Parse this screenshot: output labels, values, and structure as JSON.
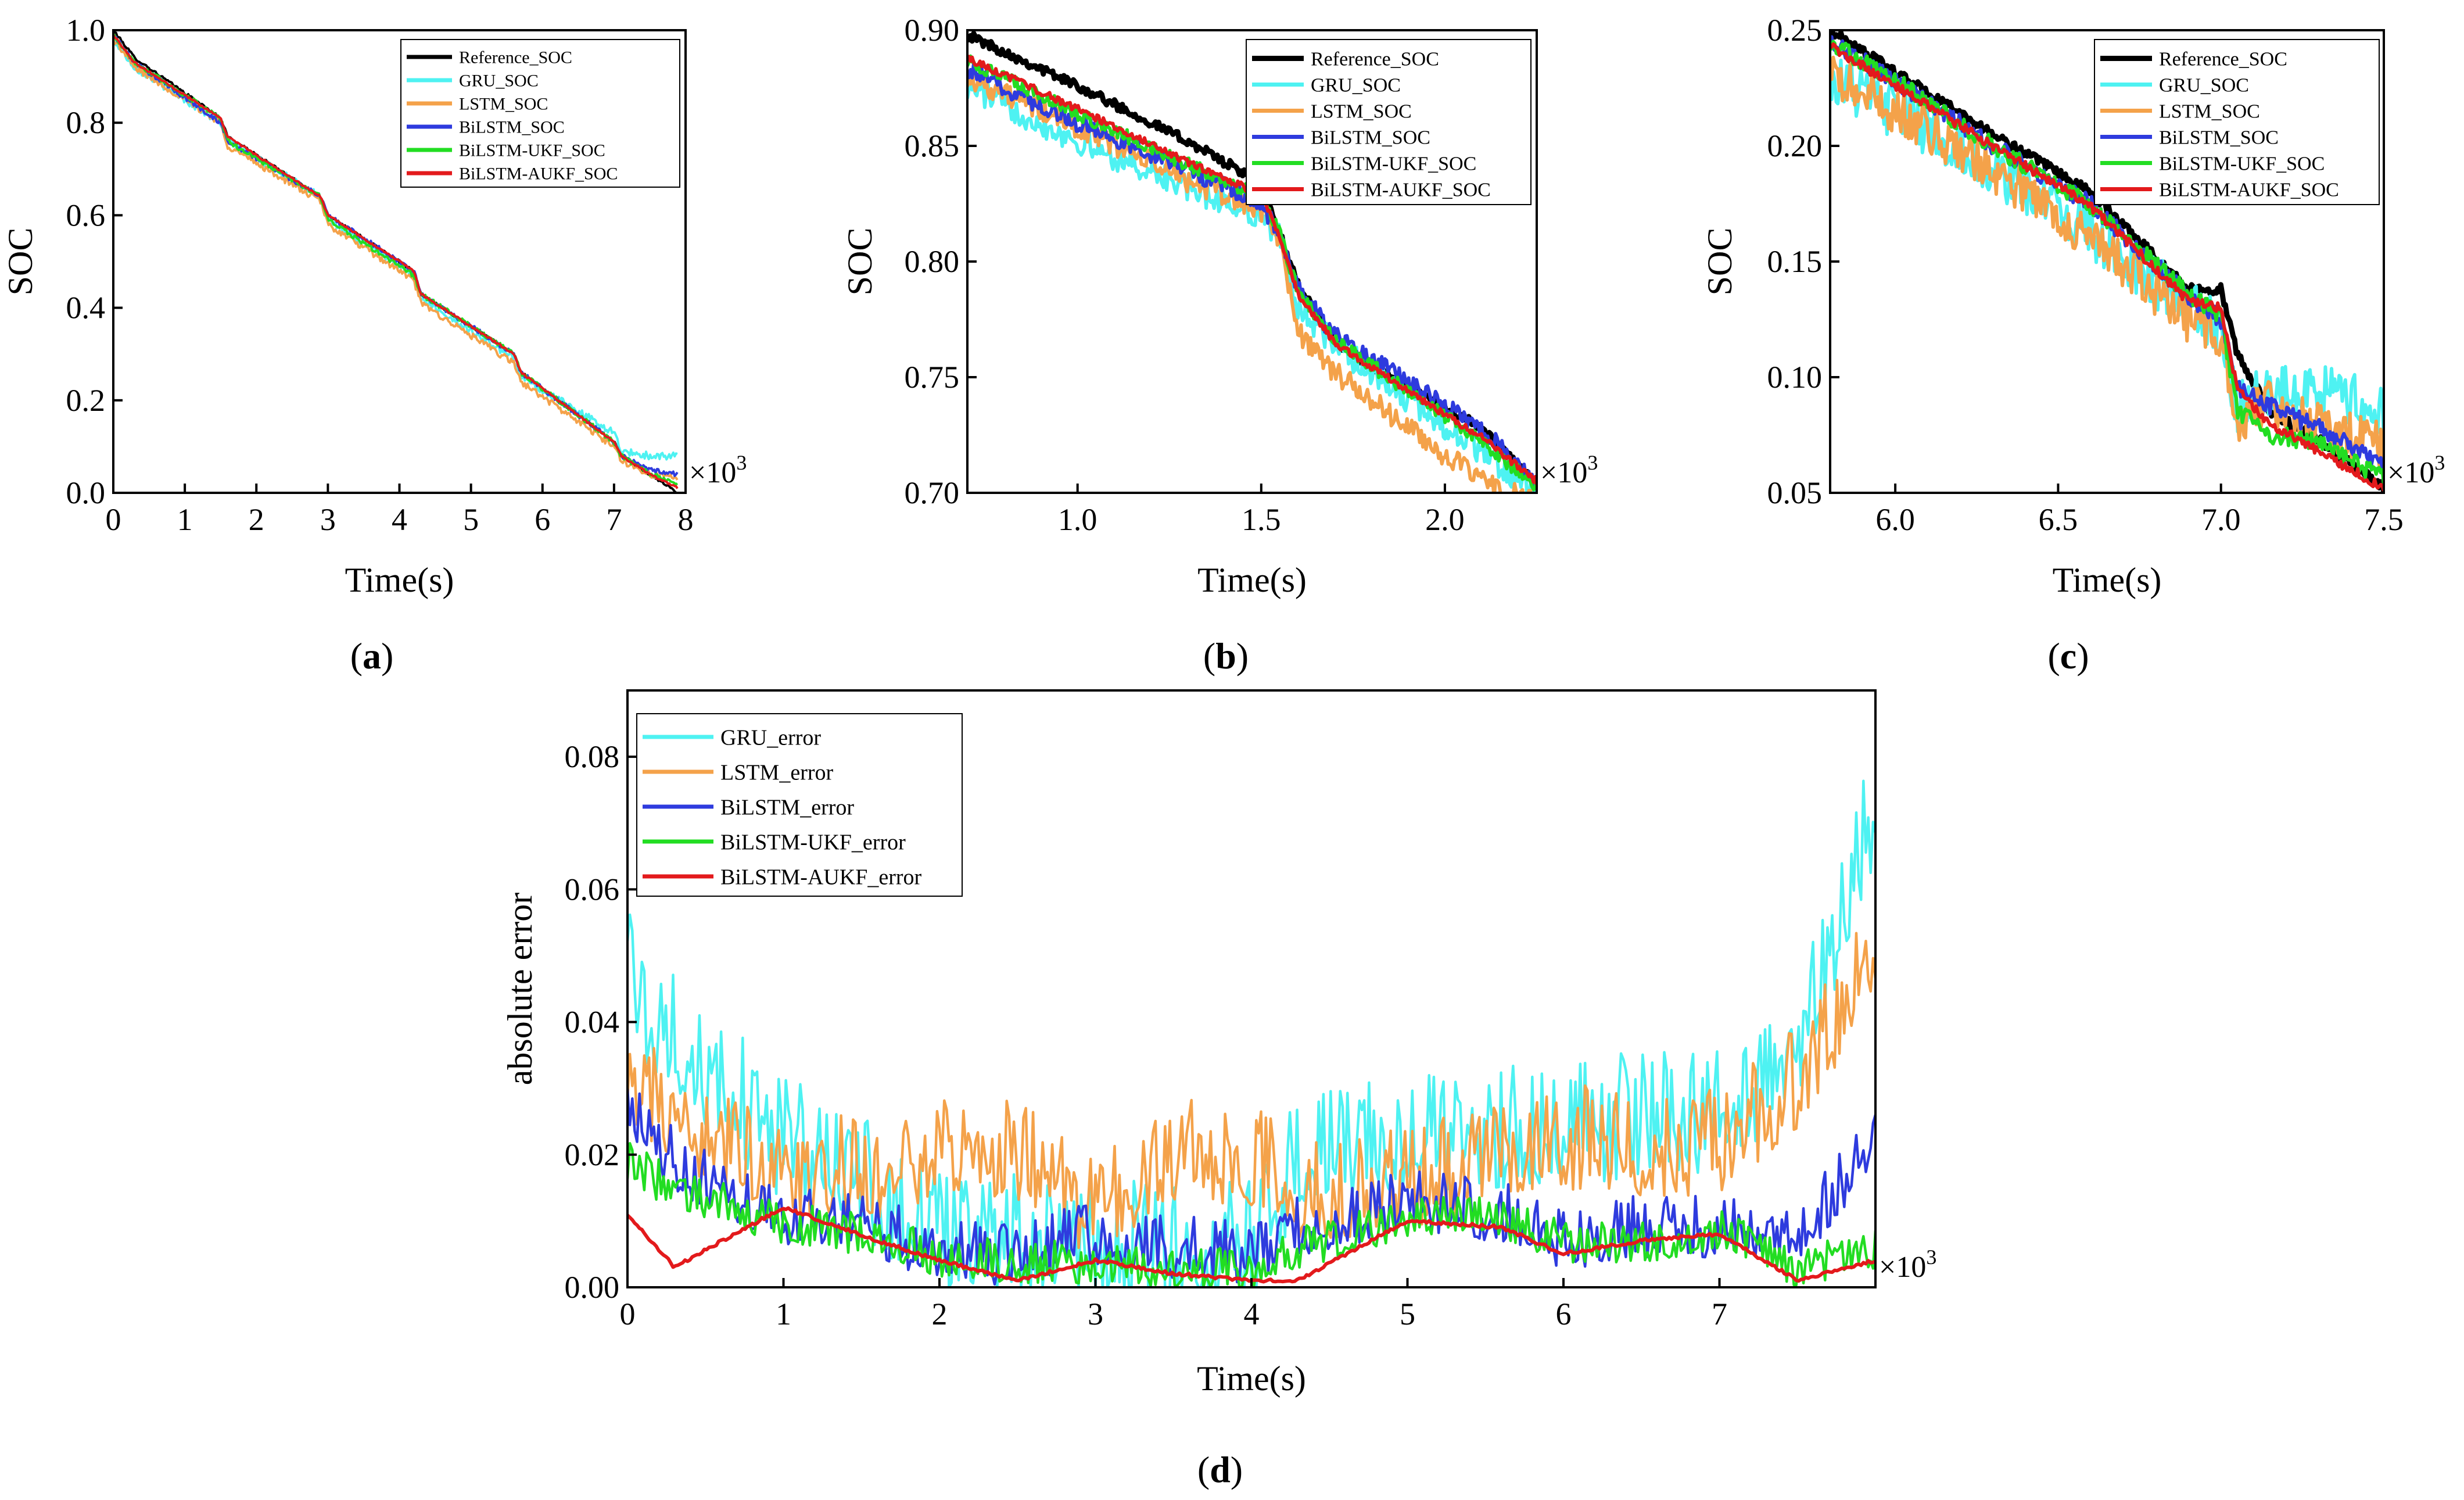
{
  "colors": {
    "reference": "#000000",
    "gru": "#4EF2F2",
    "lstm": "#F4A24A",
    "bilstm": "#2E3BDE",
    "ukf": "#22DD22",
    "aukf": "#E31A1C"
  },
  "panels": [
    {
      "label": "(a)",
      "letter": "a"
    },
    {
      "label": "(b)",
      "letter": "b"
    },
    {
      "label": "(c)",
      "letter": "c"
    },
    {
      "label": "(d)",
      "letter": "d"
    }
  ],
  "chart_data": [
    {
      "id": "a",
      "type": "line",
      "panel_label": "(a)",
      "xlabel": "Time(s)",
      "ylabel": "SOC",
      "x_multiplier": "×10",
      "x_multiplier_exp": "3",
      "xlim": [
        0,
        8
      ],
      "ylim": [
        0,
        1.0
      ],
      "xticks": [
        0,
        1,
        2,
        3,
        4,
        5,
        6,
        7,
        8
      ],
      "xtick_labels": [
        "0",
        "1",
        "2",
        "3",
        "4",
        "5",
        "6",
        "7",
        "8"
      ],
      "yticks": [
        0,
        0.2,
        0.4,
        0.6,
        0.8,
        1.0
      ],
      "ytick_labels": [
        "0.0",
        "0.2",
        "0.4",
        "0.6",
        "0.8",
        "1.0"
      ],
      "legend": "top-right",
      "grid": false,
      "anchors": {
        "x": [
          0,
          0.1,
          0.3,
          1.5,
          1.6,
          2.9,
          3.0,
          4.2,
          4.3,
          5.6,
          5.7,
          7.0,
          7.1,
          7.5,
          7.9
        ],
        "Reference_SOC": [
          1.0,
          0.98,
          0.94,
          0.81,
          0.77,
          0.64,
          0.6,
          0.48,
          0.43,
          0.3,
          0.26,
          0.11,
          0.08,
          0.04,
          0.0
        ],
        "GRU_SOC": [
          0.98,
          0.96,
          0.92,
          0.8,
          0.76,
          0.64,
          0.59,
          0.47,
          0.42,
          0.29,
          0.25,
          0.13,
          0.09,
          0.08,
          0.08
        ],
        "LSTM_SOC": [
          0.98,
          0.96,
          0.92,
          0.8,
          0.75,
          0.63,
          0.58,
          0.46,
          0.41,
          0.28,
          0.24,
          0.1,
          0.07,
          0.04,
          0.03
        ],
        "BiLSTM_SOC": [
          0.99,
          0.97,
          0.93,
          0.8,
          0.76,
          0.64,
          0.6,
          0.48,
          0.43,
          0.3,
          0.26,
          0.11,
          0.08,
          0.05,
          0.04
        ],
        "BiLSTM-UKF_SOC": [
          0.99,
          0.97,
          0.93,
          0.81,
          0.76,
          0.64,
          0.59,
          0.47,
          0.43,
          0.3,
          0.26,
          0.11,
          0.08,
          0.04,
          0.02
        ],
        "BiLSTM-AUKF_SOC": [
          0.99,
          0.97,
          0.93,
          0.81,
          0.77,
          0.64,
          0.6,
          0.48,
          0.43,
          0.3,
          0.26,
          0.11,
          0.08,
          0.04,
          0.01
        ]
      },
      "series": [
        {
          "name": "Reference_SOC",
          "color_key": "reference",
          "noise": 0.003
        },
        {
          "name": "GRU_SOC",
          "color_key": "gru",
          "noise": 0.008
        },
        {
          "name": "LSTM_SOC",
          "color_key": "lstm",
          "noise": 0.007
        },
        {
          "name": "BiLSTM_SOC",
          "color_key": "bilstm",
          "noise": 0.005
        },
        {
          "name": "BiLSTM-UKF_SOC",
          "color_key": "ukf",
          "noise": 0.005
        },
        {
          "name": "BiLSTM-AUKF_SOC",
          "color_key": "aukf",
          "noise": 0.002
        }
      ]
    },
    {
      "id": "b",
      "type": "line",
      "panel_label": "(b)",
      "xlabel": "Time(s)",
      "ylabel": "SOC",
      "x_multiplier": "×10",
      "x_multiplier_exp": "3",
      "xlim": [
        0.7,
        2.25
      ],
      "ylim": [
        0.7,
        0.9
      ],
      "xticks": [
        1.0,
        1.5,
        2.0
      ],
      "xtick_labels": [
        "1.0",
        "1.5",
        "2.0"
      ],
      "yticks": [
        0.7,
        0.75,
        0.8,
        0.85,
        0.9
      ],
      "ytick_labels": [
        "0.70",
        "0.75",
        "0.80",
        "0.85",
        "0.90"
      ],
      "legend": "top-right",
      "grid": false,
      "anchors": {
        "x": [
          0.7,
          1.0,
          1.3,
          1.5,
          1.55,
          1.6,
          1.7,
          1.9,
          2.1,
          2.25
        ],
        "Reference_SOC": [
          0.898,
          0.876,
          0.852,
          0.834,
          0.812,
          0.79,
          0.765,
          0.745,
          0.728,
          0.703
        ],
        "GRU_SOC": [
          0.876,
          0.852,
          0.832,
          0.82,
          0.81,
          0.78,
          0.764,
          0.74,
          0.718,
          0.699
        ],
        "LSTM_SOC": [
          0.88,
          0.858,
          0.835,
          0.822,
          0.81,
          0.77,
          0.752,
          0.728,
          0.705,
          0.695
        ],
        "BiLSTM_SOC": [
          0.883,
          0.86,
          0.84,
          0.825,
          0.812,
          0.788,
          0.768,
          0.748,
          0.728,
          0.704
        ],
        "BiLSTM-UKF_SOC": [
          0.887,
          0.864,
          0.842,
          0.828,
          0.812,
          0.787,
          0.766,
          0.744,
          0.722,
          0.703
        ],
        "BiLSTM-AUKF_SOC": [
          0.888,
          0.866,
          0.843,
          0.829,
          0.811,
          0.786,
          0.765,
          0.744,
          0.724,
          0.705
        ]
      },
      "series": [
        {
          "name": "Reference_SOC",
          "color_key": "reference",
          "noise": 0.002
        },
        {
          "name": "GRU_SOC",
          "color_key": "gru",
          "noise": 0.006
        },
        {
          "name": "LSTM_SOC",
          "color_key": "lstm",
          "noise": 0.005
        },
        {
          "name": "BiLSTM_SOC",
          "color_key": "bilstm",
          "noise": 0.004
        },
        {
          "name": "BiLSTM-UKF_SOC",
          "color_key": "ukf",
          "noise": 0.003
        },
        {
          "name": "BiLSTM-AUKF_SOC",
          "color_key": "aukf",
          "noise": 0.0015
        }
      ]
    },
    {
      "id": "c",
      "type": "line",
      "panel_label": "(c)",
      "xlabel": "Time(s)",
      "ylabel": "SOC",
      "x_multiplier": "×10",
      "x_multiplier_exp": "3",
      "xlim": [
        5.8,
        7.5
      ],
      "ylim": [
        0.05,
        0.25
      ],
      "xticks": [
        6.0,
        6.5,
        7.0,
        7.5
      ],
      "xtick_labels": [
        "6.0",
        "6.5",
        "7.0",
        "7.5"
      ],
      "yticks": [
        0.05,
        0.1,
        0.15,
        0.2,
        0.25
      ],
      "ytick_labels": [
        "0.05",
        "0.10",
        "0.15",
        "0.20",
        "0.25"
      ],
      "legend": "top-right",
      "grid": false,
      "anchors": {
        "x": [
          5.8,
          6.0,
          6.3,
          6.6,
          6.9,
          7.0,
          7.05,
          7.15,
          7.3,
          7.5
        ],
        "Reference_SOC": [
          0.25,
          0.232,
          0.205,
          0.18,
          0.138,
          0.138,
          0.11,
          0.085,
          0.073,
          0.052
        ],
        "GRU_SOC": [
          0.23,
          0.215,
          0.19,
          0.163,
          0.13,
          0.12,
          0.085,
          0.095,
          0.095,
          0.085
        ],
        "LSTM_SOC": [
          0.23,
          0.215,
          0.19,
          0.16,
          0.125,
          0.118,
          0.08,
          0.09,
          0.08,
          0.07
        ],
        "BiLSTM_SOC": [
          0.245,
          0.228,
          0.2,
          0.175,
          0.135,
          0.125,
          0.095,
          0.088,
          0.078,
          0.062
        ],
        "BiLSTM-UKF_SOC": [
          0.245,
          0.228,
          0.2,
          0.174,
          0.136,
          0.127,
          0.085,
          0.075,
          0.072,
          0.056
        ],
        "BiLSTM-AUKF_SOC": [
          0.243,
          0.226,
          0.2,
          0.174,
          0.133,
          0.13,
          0.095,
          0.08,
          0.068,
          0.052
        ]
      },
      "series": [
        {
          "name": "Reference_SOC",
          "color_key": "reference",
          "noise": 0.002
        },
        {
          "name": "GRU_SOC",
          "color_key": "gru",
          "noise": 0.012
        },
        {
          "name": "LSTM_SOC",
          "color_key": "lstm",
          "noise": 0.01
        },
        {
          "name": "BiLSTM_SOC",
          "color_key": "bilstm",
          "noise": 0.004
        },
        {
          "name": "BiLSTM-UKF_SOC",
          "color_key": "ukf",
          "noise": 0.004
        },
        {
          "name": "BiLSTM-AUKF_SOC",
          "color_key": "aukf",
          "noise": 0.002
        }
      ]
    },
    {
      "id": "d",
      "type": "line",
      "panel_label": "(d)",
      "xlabel": "Time(s)",
      "ylabel": "absolute error",
      "x_multiplier": "×10",
      "x_multiplier_exp": "3",
      "xlim": [
        0,
        8
      ],
      "ylim": [
        0,
        0.09
      ],
      "xticks": [
        0,
        1,
        2,
        3,
        4,
        5,
        6,
        7
      ],
      "xtick_labels": [
        "0",
        "1",
        "2",
        "3",
        "4",
        "5",
        "6",
        "7"
      ],
      "yticks": [
        0,
        0.02,
        0.04,
        0.06,
        0.08
      ],
      "ytick_labels": [
        "0.00",
        "0.02",
        "0.04",
        "0.06",
        "0.08"
      ],
      "legend": "top-left",
      "grid": false,
      "anchors": {
        "x": [
          0,
          0.3,
          1.0,
          1.6,
          2.0,
          2.5,
          3.0,
          3.5,
          4.0,
          4.3,
          5.0,
          5.6,
          6.0,
          6.5,
          7.0,
          7.5,
          8.0
        ],
        "GRU_error": [
          0.045,
          0.035,
          0.02,
          0.013,
          0.006,
          0.005,
          0.005,
          0.004,
          0.004,
          0.018,
          0.02,
          0.022,
          0.022,
          0.024,
          0.024,
          0.035,
          0.07
        ],
        "LSTM_error": [
          0.032,
          0.024,
          0.016,
          0.016,
          0.019,
          0.018,
          0.01,
          0.019,
          0.018,
          0.012,
          0.015,
          0.018,
          0.021,
          0.019,
          0.02,
          0.03,
          0.048
        ],
        "BiLSTM_error": [
          0.026,
          0.018,
          0.01,
          0.008,
          0.004,
          0.004,
          0.007,
          0.005,
          0.004,
          0.008,
          0.012,
          0.01,
          0.006,
          0.008,
          0.008,
          0.006,
          0.022
        ],
        "BiLSTM-UKF_error": [
          0.018,
          0.014,
          0.009,
          0.007,
          0.004,
          0.003,
          0.003,
          0.002,
          0.002,
          0.005,
          0.01,
          0.01,
          0.006,
          0.006,
          0.008,
          0.002,
          0.005
        ],
        "BiLSTM-AUKF_error": [
          0.011,
          0.003,
          0.012,
          0.007,
          0.004,
          0.001,
          0.004,
          0.002,
          0.001,
          0.001,
          0.01,
          0.009,
          0.005,
          0.007,
          0.008,
          0.001,
          0.004
        ]
      },
      "series": [
        {
          "name": "GRU_error",
          "color_key": "gru",
          "noise": 0.012
        },
        {
          "name": "LSTM_error",
          "color_key": "lstm",
          "noise": 0.01
        },
        {
          "name": "BiLSTM_error",
          "color_key": "bilstm",
          "noise": 0.006
        },
        {
          "name": "BiLSTM-UKF_error",
          "color_key": "ukf",
          "noise": 0.004
        },
        {
          "name": "BiLSTM-AUKF_error",
          "color_key": "aukf",
          "noise": 0.0003
        }
      ]
    }
  ]
}
